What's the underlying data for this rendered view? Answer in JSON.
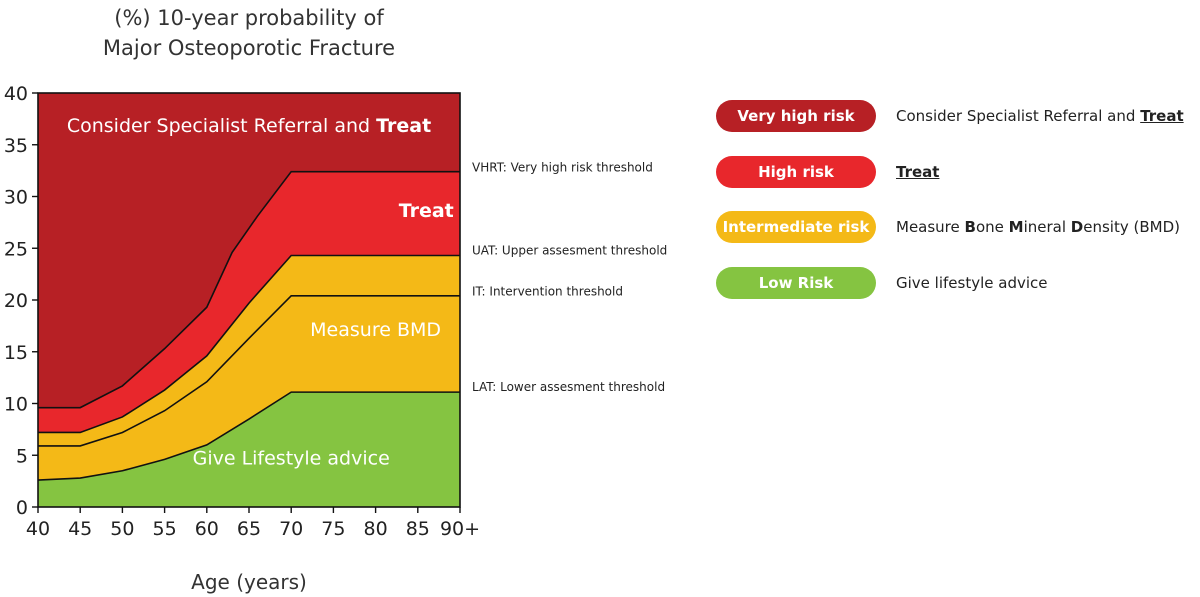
{
  "chart_data": {
    "type": "area",
    "title": "(%) 10-year probability of",
    "subtitle": "Major Osteoporotic Fracture",
    "xlabel": "Age (years)",
    "ylabel": "",
    "x": [
      40,
      45,
      50,
      55,
      60,
      65,
      70,
      75,
      80,
      85,
      90
    ],
    "x_tick_labels": [
      "40",
      "45",
      "50",
      "55",
      "60",
      "65",
      "70",
      "75",
      "80",
      "85",
      "90+"
    ],
    "xlim": [
      40,
      90
    ],
    "ylim": [
      0,
      40
    ],
    "y_ticks": [
      0,
      5,
      10,
      15,
      20,
      25,
      30,
      35,
      40
    ],
    "grid": false,
    "boundaries": [
      {
        "name": "LAT: Lower assesment  threshold",
        "label_y": 11.6,
        "x": [
          40,
          45,
          50,
          55,
          60,
          65,
          70,
          90
        ],
        "y": [
          2.6,
          2.8,
          3.5,
          4.6,
          6.0,
          8.5,
          11.1,
          11.1
        ]
      },
      {
        "name": "",
        "label_y": null,
        "x": [
          40,
          45,
          50,
          55,
          60,
          65,
          70,
          90
        ],
        "y": [
          5.9,
          5.9,
          7.2,
          9.3,
          12.1,
          16.3,
          20.4,
          20.4
        ]
      },
      {
        "name": "IT: Intervention  threshold",
        "label_y": 20.8,
        "x": [
          40,
          45,
          50,
          55,
          60,
          65,
          70,
          90
        ],
        "y": [
          7.2,
          7.2,
          8.7,
          11.3,
          14.6,
          19.7,
          24.3,
          24.3
        ]
      },
      {
        "name": "UAT: Upper assesment  threshold",
        "label_y": 24.8,
        "x": [
          40,
          45,
          50,
          55,
          60,
          63,
          66,
          70,
          90
        ],
        "y": [
          9.6,
          9.6,
          11.7,
          15.3,
          19.3,
          24.6,
          28.1,
          32.4,
          32.4
        ]
      },
      {
        "name": "VHRT: Very high risk threshold",
        "label_y": 32.8,
        "x": [],
        "y": []
      }
    ],
    "region_labels": [
      {
        "text": "Give Lifestyle advice",
        "bold": false,
        "x": 70,
        "y": 4.8
      },
      {
        "text": "Measure BMD",
        "bold": false,
        "x": 80,
        "y": 17.2
      },
      {
        "text": "Treat",
        "bold": true,
        "x": 86,
        "y": 28.7
      },
      {
        "text": "Consider Specialist Referral and ",
        "bold_suffix": "Treat",
        "x": 65,
        "y": 36.9
      }
    ],
    "colors": {
      "low": "#85c441",
      "intermediate": "#f4b917",
      "high": "#e8272c",
      "very_high": "#b72025"
    }
  },
  "legend": [
    {
      "pill": "Very high risk",
      "color": "#b72025",
      "desc": "Consider Specialist Referral and ",
      "desc_strong": "Treat"
    },
    {
      "pill": "High risk",
      "color": "#e8272c",
      "desc_strong": "Treat"
    },
    {
      "pill": "Intermediate risk",
      "color": "#f4b917",
      "desc_parts": [
        "Measure ",
        "B",
        "one ",
        "M",
        "ineral ",
        "D",
        "ensity (BMD)"
      ]
    },
    {
      "pill": "Low Risk",
      "color": "#85c441",
      "desc": "Give lifestyle advice"
    }
  ]
}
